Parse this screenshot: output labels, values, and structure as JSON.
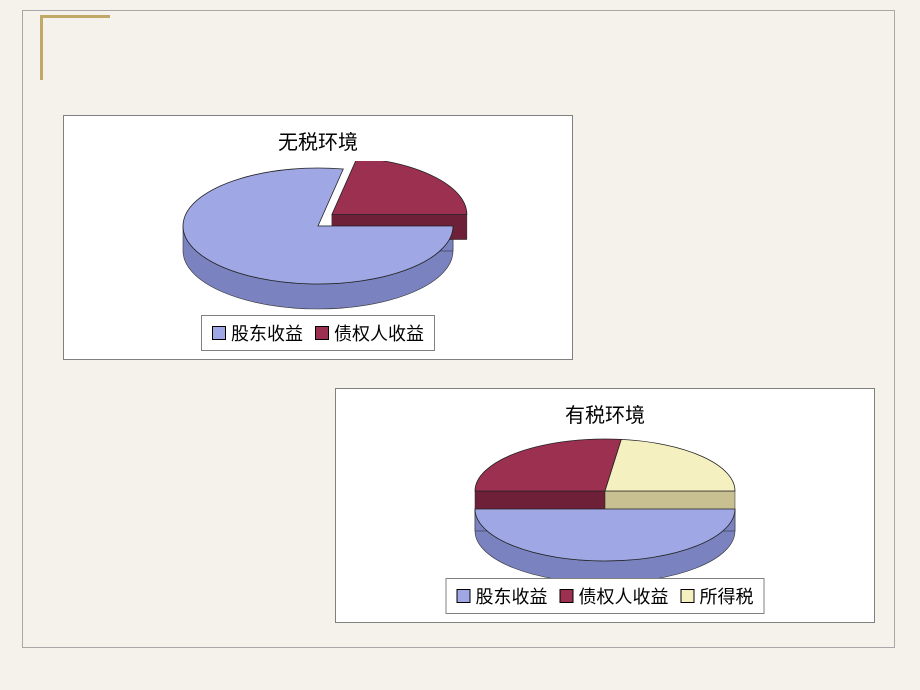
{
  "background_color": "#f5f2ec",
  "corner_border_color": "#c0a968",
  "chart1": {
    "type": "pie",
    "title": "无税环境",
    "title_fontsize": 20,
    "background_color": "#ffffff",
    "border_color": "#808080",
    "exploded_slice": 1,
    "depth_3d": 25,
    "tilt": 0.45,
    "series": [
      {
        "label": "股东收益",
        "value": 78,
        "color_top": "#9fa8e4",
        "color_side": "#7a82c0"
      },
      {
        "label": "债权人收益",
        "value": 22,
        "color_top": "#9c3050",
        "color_side": "#6e2038"
      }
    ]
  },
  "chart2": {
    "type": "pie",
    "title": "有税环境",
    "title_fontsize": 20,
    "background_color": "#ffffff",
    "border_color": "#808080",
    "exploded_slice": 0,
    "depth_3d": 22,
    "tilt": 0.42,
    "series": [
      {
        "label": "股东收益",
        "value": 50,
        "color_top": "#9fa8e4",
        "color_side": "#7a82c0"
      },
      {
        "label": "债权人收益",
        "value": 27,
        "color_top": "#9c3050",
        "color_side": "#6e2038"
      },
      {
        "label": "所得税",
        "value": 23,
        "color_top": "#f5f0c0",
        "color_side": "#c8c090"
      }
    ]
  }
}
